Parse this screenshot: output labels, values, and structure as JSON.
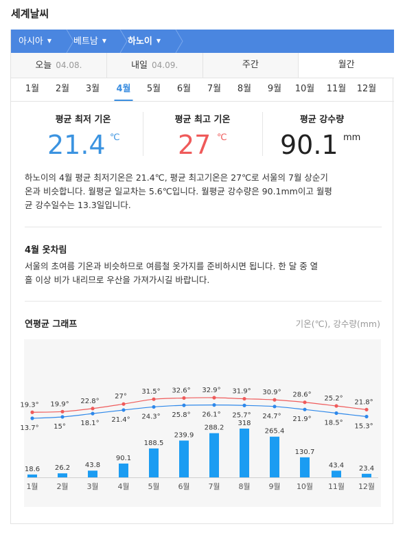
{
  "page_title": "세계날씨",
  "breadcrumb": [
    "아시아",
    "베트남",
    "하노이"
  ],
  "tabs": [
    {
      "label": "오늘",
      "date": "04.08."
    },
    {
      "label": "내일",
      "date": "04.09."
    },
    {
      "label": "주간",
      "date": ""
    },
    {
      "label": "월간",
      "date": ""
    }
  ],
  "months": [
    "1월",
    "2월",
    "3월",
    "4월",
    "5월",
    "6월",
    "7월",
    "8월",
    "9월",
    "10월",
    "11월",
    "12월"
  ],
  "active_month_index": 3,
  "stats": {
    "min": {
      "label": "평균 최저 기온",
      "value": "21.4",
      "unit": "℃",
      "color": "#3b93e0"
    },
    "max": {
      "label": "평균 최고 기온",
      "value": "27",
      "unit": "℃",
      "color": "#ef5a5a"
    },
    "rain": {
      "label": "평균 강수량",
      "value": "90.1",
      "unit": "mm",
      "color": "#222222"
    }
  },
  "summary_lines": [
    "하노이의 4월 평균 최저기온은 21.4℃, 평균 최고기온은 27℃로 서울의 7월 상순기",
    "온과 비슷합니다. 월평균 일교차는 5.6℃입니다. 월평균 강수량은 90.1mm이고 월평",
    "균 강수일수는 13.3일입니다."
  ],
  "clothing": {
    "heading": "4월 옷차림",
    "lines": [
      "서울의 초여름 기온과 비슷하므로 여름철 옷가지를 준비하시면 됩니다. 한 달 중 열",
      "흘 이상 비가 내리므로 우산을 가져가시길 바랍니다."
    ]
  },
  "graph": {
    "heading": "연평균 그래프",
    "note": "기온(℃), 강수량(mm)"
  },
  "chart_data": {
    "type": "line+bar",
    "categories": [
      "1월",
      "2월",
      "3월",
      "4월",
      "5월",
      "6월",
      "7월",
      "8월",
      "9월",
      "10월",
      "11월",
      "12월"
    ],
    "series": [
      {
        "values": [
          19.3,
          19.9,
          22.8,
          27,
          31.5,
          32.6,
          32.9,
          31.9,
          30.9,
          28.6,
          25.2,
          21.8
        ],
        "color": "#ef5a5a",
        "type": "line"
      },
      {
        "values": [
          13.7,
          15,
          18.1,
          21.4,
          24.3,
          25.8,
          26.1,
          25.7,
          24.7,
          21.9,
          18.5,
          15.3
        ],
        "color": "#2e88ea",
        "type": "line"
      },
      {
        "values": [
          18.6,
          26.2,
          43.8,
          90.1,
          188.5,
          239.9,
          288.2,
          318,
          265.4,
          130.7,
          43.4,
          23.4
        ],
        "color": "#1b9cf2",
        "type": "bar"
      }
    ],
    "temp_label_suffix": "°",
    "temp_range": [
      13.7,
      32.9
    ],
    "rain_range": [
      0,
      318
    ]
  }
}
